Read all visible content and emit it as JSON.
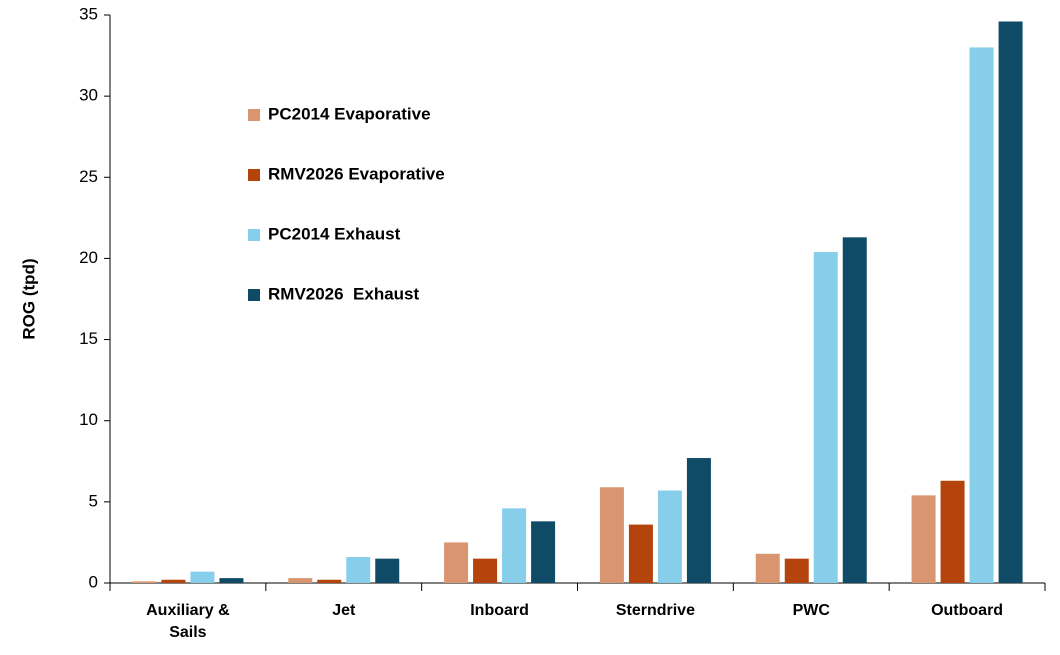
{
  "chart_data": {
    "type": "bar",
    "y_label": "ROG (tpd)",
    "categories": [
      "Auxiliary & Sails",
      "Jet",
      "Inboard",
      "Sterndrive",
      "PWC",
      "Outboard"
    ],
    "series": [
      {
        "name": "PC2014 Evaporative",
        "color": "#d99570",
        "values": [
          0.1,
          0.3,
          2.5,
          5.9,
          1.8,
          5.4
        ]
      },
      {
        "name": "RMV2026 Evaporative",
        "color": "#b5440c",
        "values": [
          0.2,
          0.2,
          1.5,
          3.6,
          1.5,
          6.3
        ]
      },
      {
        "name": "PC2014 Exhaust",
        "color": "#87ceeb",
        "values": [
          0.7,
          1.6,
          4.6,
          5.7,
          20.4,
          33.0
        ]
      },
      {
        "name": "RMV2026  Exhaust",
        "color": "#0f4a66",
        "values": [
          0.3,
          1.5,
          3.8,
          7.7,
          21.3,
          34.6
        ]
      }
    ],
    "ylim": [
      0,
      35
    ],
    "yticks": [
      0,
      5,
      10,
      15,
      20,
      25,
      30,
      35
    ],
    "grid": false,
    "legend": "upper left"
  }
}
